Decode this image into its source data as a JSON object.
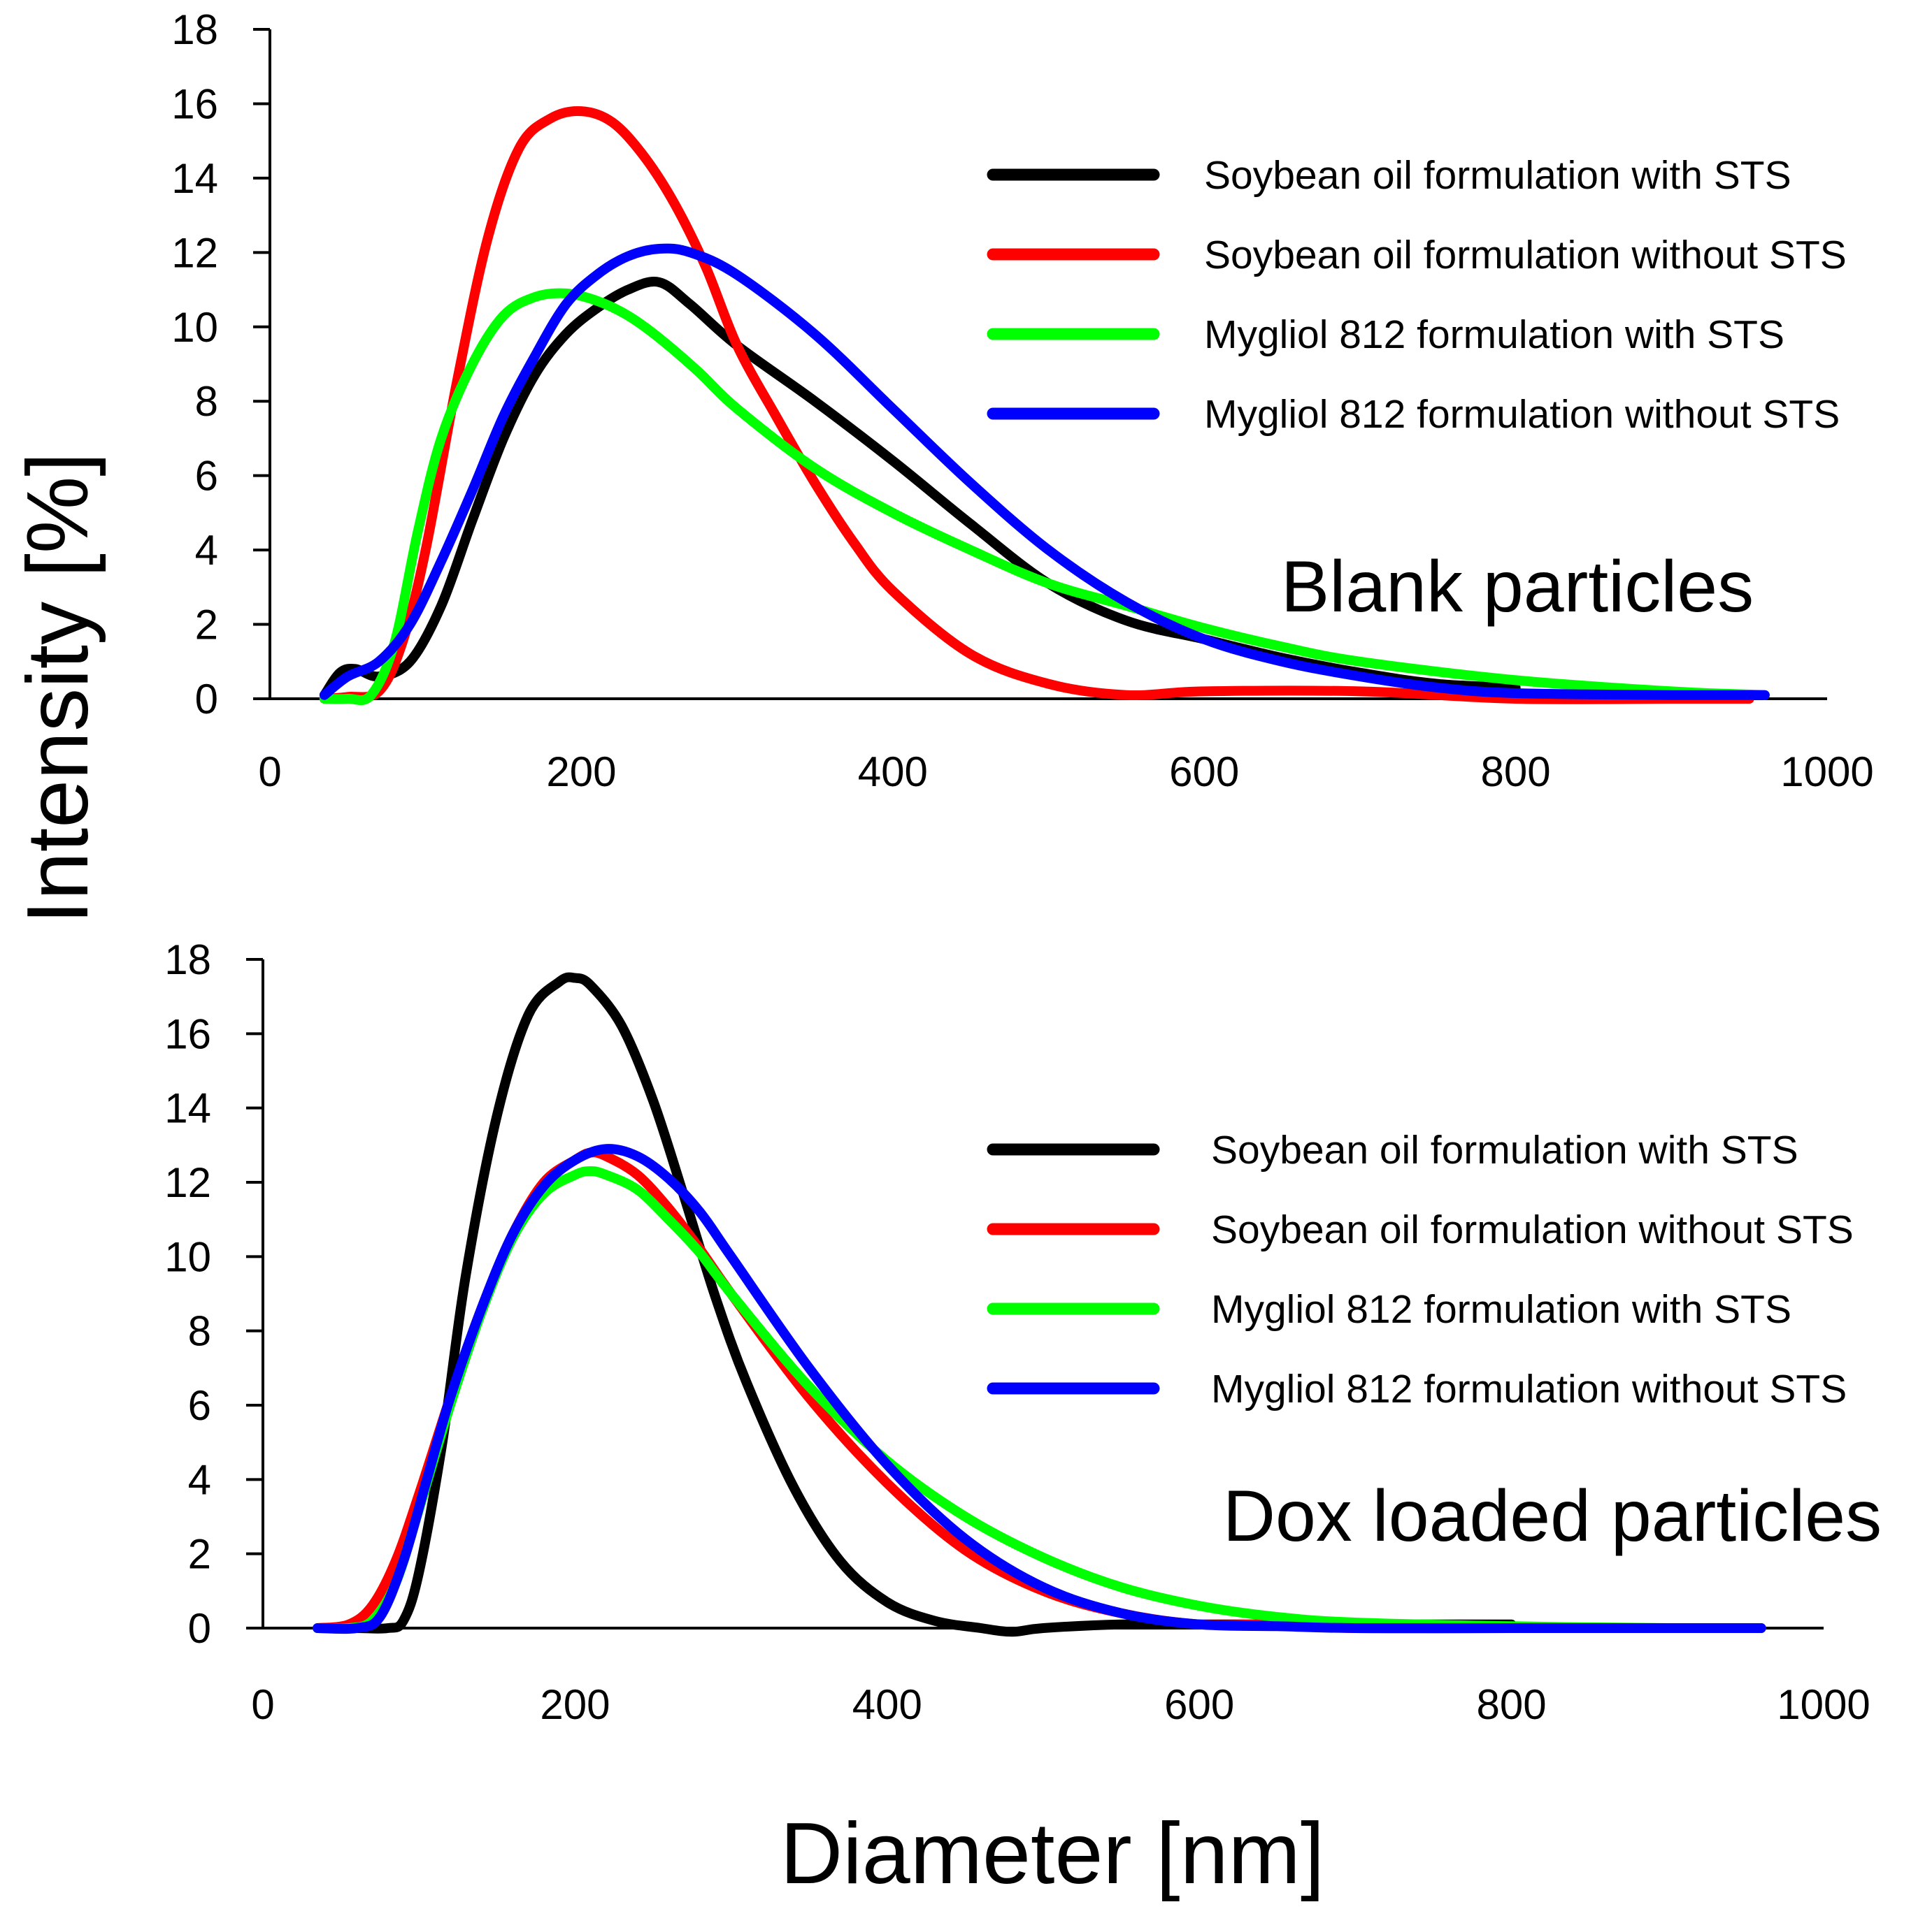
{
  "figure": {
    "ylabel": "Intensity [%]",
    "xlabel": "Diameter [nm]"
  },
  "chart_data": [
    {
      "type": "line",
      "title": "Blank particles",
      "xlabel": "Diameter [nm]",
      "ylabel": "Intensity [%]",
      "xlim": [
        0,
        1000
      ],
      "ylim": [
        0,
        18
      ],
      "xticks": [
        0,
        200,
        400,
        600,
        800,
        1000
      ],
      "yticks": [
        0,
        2,
        4,
        6,
        8,
        10,
        12,
        14,
        16,
        18
      ],
      "grid": false,
      "legend_position": "top-right",
      "series": [
        {
          "name": "Soybean oil formulation with STS",
          "color": "#000000",
          "x": [
            35,
            45,
            55,
            70,
            90,
            110,
            130,
            150,
            170,
            190,
            210,
            230,
            250,
            270,
            300,
            350,
            400,
            450,
            500,
            550,
            600,
            650,
            700,
            750,
            800
          ],
          "y": [
            0.1,
            0.7,
            0.8,
            0.6,
            1.0,
            2.5,
            4.8,
            7.0,
            8.7,
            9.8,
            10.5,
            11.0,
            11.2,
            10.6,
            9.5,
            8.0,
            6.4,
            4.7,
            3.1,
            2.1,
            1.6,
            1.1,
            0.7,
            0.4,
            0.3
          ]
        },
        {
          "name": "Soybean oil formulation without STS",
          "color": "#ff0000",
          "x": [
            35,
            50,
            70,
            85,
            100,
            120,
            140,
            160,
            180,
            200,
            220,
            240,
            260,
            280,
            300,
            325,
            350,
            375,
            400,
            450,
            500,
            550,
            600,
            700,
            800,
            900,
            950
          ],
          "y": [
            0.0,
            0.05,
            0.2,
            1.5,
            4.0,
            8.5,
            12.4,
            14.8,
            15.6,
            15.8,
            15.5,
            14.6,
            13.3,
            11.6,
            9.5,
            7.6,
            5.8,
            4.2,
            2.9,
            1.2,
            0.4,
            0.1,
            0.2,
            0.2,
            0.0,
            0.0,
            0.0
          ]
        },
        {
          "name": "Mygliol 812 formulation with STS",
          "color": "#00ff00",
          "x": [
            35,
            50,
            65,
            80,
            95,
            110,
            130,
            150,
            170,
            190,
            210,
            230,
            250,
            275,
            300,
            350,
            400,
            450,
            500,
            550,
            600,
            650,
            700,
            800,
            900,
            960
          ],
          "y": [
            0.0,
            0.0,
            0.1,
            1.5,
            4.5,
            7.0,
            9.0,
            10.3,
            10.8,
            10.9,
            10.7,
            10.3,
            9.7,
            8.8,
            7.8,
            6.2,
            5.0,
            4.0,
            3.1,
            2.5,
            1.9,
            1.4,
            1.0,
            0.5,
            0.2,
            0.1
          ]
        },
        {
          "name": "Mygliol 812 formulation without STS",
          "color": "#0000ff",
          "x": [
            35,
            50,
            70,
            90,
            110,
            130,
            150,
            170,
            190,
            210,
            230,
            250,
            270,
            300,
            350,
            400,
            450,
            500,
            550,
            600,
            650,
            700,
            750,
            800,
            900,
            960
          ],
          "y": [
            0.1,
            0.6,
            1.0,
            2.0,
            3.7,
            5.6,
            7.6,
            9.2,
            10.6,
            11.4,
            11.9,
            12.1,
            12.0,
            11.4,
            9.8,
            7.8,
            5.8,
            4.0,
            2.6,
            1.6,
            1.0,
            0.6,
            0.3,
            0.15,
            0.1,
            0.1
          ]
        }
      ]
    },
    {
      "type": "line",
      "title": "Dox loaded particles",
      "xlabel": "Diameter [nm]",
      "ylabel": "Intensity [%]",
      "xlim": [
        0,
        1000
      ],
      "ylim": [
        0,
        18
      ],
      "xticks": [
        0,
        200,
        400,
        600,
        800,
        1000
      ],
      "yticks": [
        0,
        2,
        4,
        6,
        8,
        10,
        12,
        14,
        16,
        18
      ],
      "grid": false,
      "legend_position": "top-right",
      "series": [
        {
          "name": "Soybean oil formulation with STS",
          "color": "#000000",
          "x": [
            35,
            60,
            80,
            90,
            100,
            115,
            130,
            150,
            170,
            190,
            200,
            210,
            230,
            250,
            270,
            290,
            310,
            340,
            370,
            400,
            430,
            460,
            480,
            500,
            550,
            600,
            700,
            800
          ],
          "y": [
            0.0,
            0.0,
            0.0,
            0.2,
            1.5,
            5.0,
            9.5,
            13.8,
            16.5,
            17.4,
            17.5,
            17.3,
            16.2,
            14.2,
            11.6,
            8.9,
            6.6,
            3.8,
            1.8,
            0.7,
            0.2,
            0.0,
            -0.1,
            0.0,
            0.1,
            0.1,
            0.1,
            0.1
          ]
        },
        {
          "name": "Soybean oil formulation without STS",
          "color": "#ff0000",
          "x": [
            35,
            55,
            70,
            85,
            100,
            120,
            140,
            160,
            180,
            200,
            210,
            220,
            240,
            260,
            280,
            300,
            350,
            400,
            450,
            500,
            550,
            600,
            650,
            700,
            800,
            900,
            960
          ],
          "y": [
            0.0,
            0.1,
            0.6,
            1.8,
            3.6,
            6.2,
            8.6,
            10.6,
            12.0,
            12.6,
            12.8,
            12.7,
            12.2,
            11.3,
            10.2,
            9.0,
            6.2,
            3.9,
            2.1,
            1.0,
            0.4,
            0.1,
            0.1,
            0.0,
            0.0,
            0.0,
            0.0
          ]
        },
        {
          "name": "Mygliol 812 formulation with STS",
          "color": "#00ff00",
          "x": [
            35,
            55,
            70,
            85,
            100,
            120,
            140,
            160,
            180,
            200,
            210,
            220,
            240,
            260,
            280,
            300,
            350,
            400,
            450,
            500,
            550,
            600,
            650,
            700,
            800,
            900,
            960
          ],
          "y": [
            0.0,
            0.0,
            0.2,
            1.2,
            3.2,
            6.0,
            8.5,
            10.5,
            11.7,
            12.2,
            12.3,
            12.2,
            11.8,
            11.0,
            10.1,
            9.0,
            6.5,
            4.5,
            3.0,
            1.9,
            1.1,
            0.6,
            0.3,
            0.15,
            0.05,
            0.0,
            0.0
          ]
        },
        {
          "name": "Mygliol 812 formulation without STS",
          "color": "#0000ff",
          "x": [
            35,
            60,
            75,
            90,
            105,
            120,
            140,
            160,
            180,
            200,
            220,
            240,
            260,
            280,
            300,
            350,
            400,
            450,
            500,
            550,
            600,
            650,
            700,
            800,
            900,
            960
          ],
          "y": [
            0.0,
            0.0,
            0.3,
            1.8,
            4.0,
            6.2,
            8.6,
            10.6,
            11.9,
            12.6,
            12.9,
            12.7,
            12.1,
            11.2,
            10.0,
            7.0,
            4.4,
            2.4,
            1.1,
            0.4,
            0.1,
            0.05,
            0.0,
            0.0,
            0.0,
            0.0
          ]
        }
      ]
    }
  ]
}
